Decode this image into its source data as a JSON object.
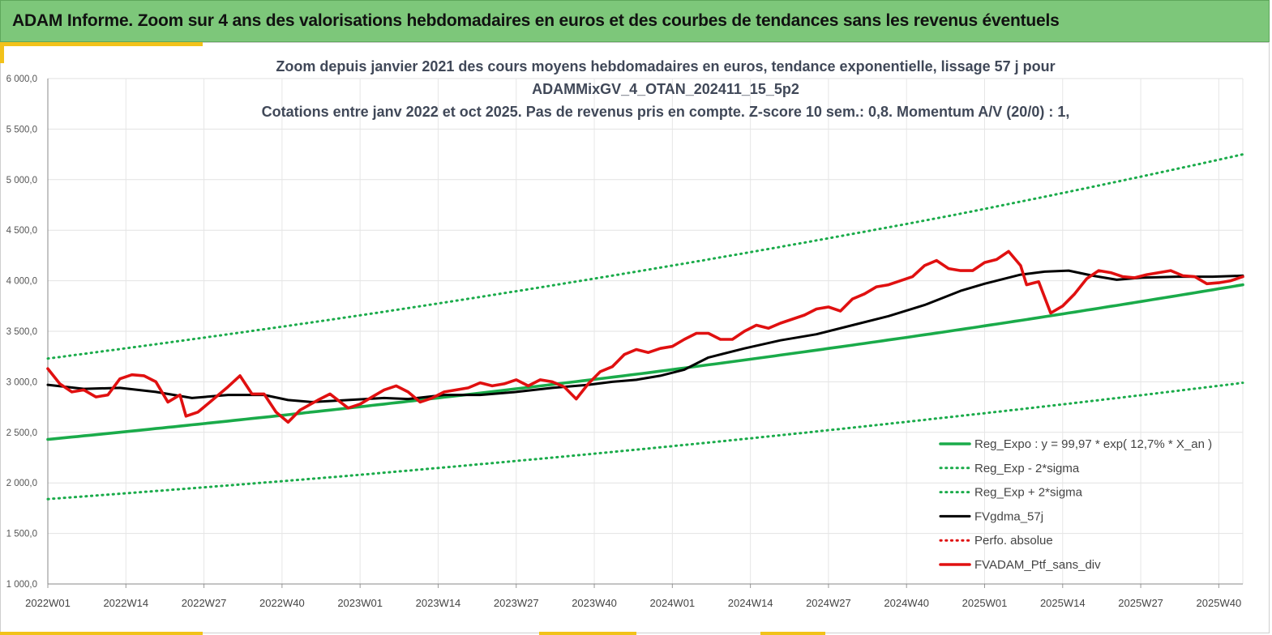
{
  "header": {
    "title": "ADAM Informe. Zoom sur 4 ans des valorisations hebdomadaires en euros et des courbes de tendances sans les revenus éventuels"
  },
  "colors": {
    "banner": "#7dc77a",
    "accent": "#f2c21a",
    "trend_green": "#1aab4a",
    "moving_average": "#000000",
    "portfolio_red": "#e01010"
  },
  "chart_data": {
    "type": "line",
    "title_lines": [
      "Zoom depuis janvier 2021 des cours moyens hebdomadaires  en euros, tendance exponentielle, lissage 57 j pour",
      "ADAMMixGV_4_OTAN_202411_15_5p2",
      "Cotations  entre janv 2022 et oct 2025. Pas de revenus pris en compte. Z-score 10 sem.: 0,8. Momentum A/V (20/0) : 1,"
    ],
    "xlabel": "",
    "ylabel": "",
    "ylim": [
      1000,
      6000
    ],
    "yticks": [
      "1 000,0",
      "1 500,0",
      "2 000,0",
      "2 500,0",
      "3 000,0",
      "3 500,0",
      "4 000,0",
      "4 500,0",
      "5 000,0",
      "5 500,0",
      "6 000,0"
    ],
    "xticks": [
      "2022W01",
      "2022W14",
      "2022W27",
      "2022W40",
      "2023W01",
      "2023W14",
      "2023W27",
      "2023W40",
      "2024W01",
      "2024W14",
      "2024W27",
      "2024W40",
      "2025W01",
      "2025W14",
      "2025W27",
      "2025W40"
    ],
    "x_range_weeks": [
      0,
      199
    ],
    "grid": true,
    "legend_position": "bottom-right",
    "series": [
      {
        "name": "Reg_Expo : y = 99,97 * exp( 12,7% *  X_an )",
        "style": "solid-thick",
        "color": "#1aab4a",
        "x": [
          0,
          50,
          100,
          150,
          199
        ],
        "values": [
          2430,
          2740,
          3090,
          3500,
          3960
        ]
      },
      {
        "name": "Reg_Exp - 2*sigma",
        "style": "dotted",
        "color": "#1aab4a",
        "x": [
          0,
          50,
          100,
          150,
          199
        ],
        "values": [
          1840,
          2070,
          2340,
          2650,
          2990
        ]
      },
      {
        "name": "Reg_Exp + 2*sigma",
        "style": "dotted",
        "color": "#1aab4a",
        "x": [
          0,
          50,
          100,
          150,
          199
        ],
        "values": [
          3230,
          3640,
          4110,
          4640,
          5250
        ]
      },
      {
        "name": "FVgdma_57j",
        "style": "solid",
        "color": "#000000",
        "x": [
          0,
          6,
          12,
          18,
          24,
          30,
          36,
          40,
          44,
          50,
          56,
          60,
          66,
          72,
          78,
          84,
          90,
          94,
          98,
          102,
          106,
          110,
          116,
          122,
          128,
          134,
          140,
          146,
          152,
          156,
          162,
          166,
          170,
          174,
          178,
          182,
          188,
          194,
          199
        ],
        "values": [
          2970,
          2930,
          2940,
          2900,
          2840,
          2870,
          2870,
          2820,
          2800,
          2820,
          2840,
          2830,
          2870,
          2870,
          2900,
          2940,
          2970,
          3000,
          3020,
          3060,
          3120,
          3240,
          3330,
          3410,
          3470,
          3560,
          3650,
          3760,
          3900,
          3970,
          4060,
          4090,
          4100,
          4050,
          4010,
          4030,
          4040,
          4040,
          4050
        ]
      },
      {
        "name": "Perfo. absolue",
        "style": "dotted",
        "color": "#e01010",
        "x": [],
        "values": []
      },
      {
        "name": "FVADAM_Ptf_sans_div",
        "style": "solid-thick",
        "color": "#e01010",
        "x": [
          0,
          2,
          4,
          6,
          8,
          10,
          12,
          14,
          16,
          18,
          20,
          22,
          23,
          25,
          27,
          30,
          32,
          34,
          36,
          38,
          40,
          42,
          45,
          47,
          50,
          52,
          54,
          56,
          58,
          60,
          62,
          64,
          66,
          68,
          70,
          72,
          74,
          76,
          78,
          80,
          82,
          84,
          86,
          88,
          90,
          92,
          94,
          96,
          98,
          100,
          102,
          104,
          106,
          108,
          110,
          112,
          114,
          116,
          118,
          120,
          122,
          124,
          126,
          128,
          130,
          132,
          134,
          136,
          138,
          140,
          142,
          144,
          146,
          148,
          150,
          152,
          154,
          156,
          158,
          160,
          162,
          163,
          165,
          167,
          169,
          171,
          173,
          175,
          177,
          179,
          181,
          183,
          185,
          187,
          189,
          191,
          193,
          195,
          197,
          199
        ],
        "values": [
          3130,
          2980,
          2900,
          2920,
          2850,
          2870,
          3030,
          3070,
          3060,
          3000,
          2800,
          2870,
          2660,
          2700,
          2800,
          2950,
          3060,
          2880,
          2880,
          2700,
          2600,
          2720,
          2820,
          2880,
          2740,
          2780,
          2850,
          2920,
          2960,
          2900,
          2800,
          2840,
          2900,
          2920,
          2940,
          2990,
          2960,
          2980,
          3020,
          2960,
          3020,
          3000,
          2950,
          2830,
          2980,
          3100,
          3150,
          3270,
          3320,
          3290,
          3330,
          3350,
          3420,
          3480,
          3480,
          3420,
          3420,
          3500,
          3560,
          3530,
          3580,
          3620,
          3660,
          3720,
          3740,
          3700,
          3820,
          3870,
          3940,
          3960,
          4000,
          4040,
          4150,
          4200,
          4120,
          4100,
          4100,
          4180,
          4210,
          4290,
          4150,
          3960,
          3990,
          3680,
          3750,
          3870,
          4020,
          4100,
          4080,
          4040,
          4030,
          4060,
          4080,
          4100,
          4050,
          4040,
          3970,
          3980,
          4000,
          4040
        ]
      }
    ]
  }
}
